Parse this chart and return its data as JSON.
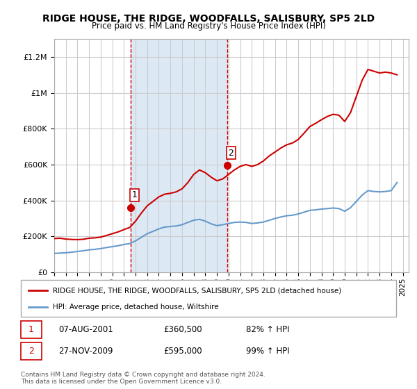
{
  "title": "RIDGE HOUSE, THE RIDGE, WOODFALLS, SALISBURY, SP5 2LD",
  "subtitle": "Price paid vs. HM Land Registry's House Price Index (HPI)",
  "legend_label_red": "RIDGE HOUSE, THE RIDGE, WOODFALLS, SALISBURY, SP5 2LD (detached house)",
  "legend_label_blue": "HPI: Average price, detached house, Wiltshire",
  "sale1_label": "1",
  "sale1_date": "07-AUG-2001",
  "sale1_price": "£360,500",
  "sale1_hpi": "82% ↑ HPI",
  "sale1_year": 2001.6,
  "sale1_value": 360500,
  "sale2_label": "2",
  "sale2_date": "27-NOV-2009",
  "sale2_price": "£595,000",
  "sale2_hpi": "99% ↑ HPI",
  "sale2_year": 2009.9,
  "sale2_value": 595000,
  "footnote": "Contains HM Land Registry data © Crown copyright and database right 2024.\nThis data is licensed under the Open Government Licence v3.0.",
  "background_color": "#ffffff",
  "shading_color": "#dce9f5",
  "red_color": "#cc0000",
  "blue_color": "#6699cc",
  "grid_color": "#cccccc",
  "ylim_min": 0,
  "ylim_max": 1300000,
  "xlim_min": 1995,
  "xlim_max": 2025.5,
  "hpi_years": [
    1995.0,
    1995.5,
    1996.0,
    1996.5,
    1997.0,
    1997.5,
    1998.0,
    1998.5,
    1999.0,
    1999.5,
    2000.0,
    2000.5,
    2001.0,
    2001.5,
    2002.0,
    2002.5,
    2003.0,
    2003.5,
    2004.0,
    2004.5,
    2005.0,
    2005.5,
    2006.0,
    2006.5,
    2007.0,
    2007.5,
    2008.0,
    2008.5,
    2009.0,
    2009.5,
    2010.0,
    2010.5,
    2011.0,
    2011.5,
    2012.0,
    2012.5,
    2013.0,
    2013.5,
    2014.0,
    2014.5,
    2015.0,
    2015.5,
    2016.0,
    2016.5,
    2017.0,
    2017.5,
    2018.0,
    2018.5,
    2019.0,
    2019.5,
    2020.0,
    2020.5,
    2021.0,
    2021.5,
    2022.0,
    2022.5,
    2023.0,
    2023.5,
    2024.0,
    2024.5
  ],
  "hpi_values": [
    105000,
    107000,
    109000,
    112000,
    116000,
    120000,
    125000,
    128000,
    132000,
    138000,
    143000,
    148000,
    155000,
    160000,
    175000,
    195000,
    215000,
    228000,
    242000,
    252000,
    255000,
    258000,
    265000,
    278000,
    290000,
    295000,
    285000,
    270000,
    260000,
    265000,
    272000,
    278000,
    280000,
    278000,
    272000,
    275000,
    280000,
    290000,
    300000,
    308000,
    315000,
    318000,
    325000,
    335000,
    345000,
    348000,
    352000,
    355000,
    358000,
    355000,
    340000,
    360000,
    395000,
    430000,
    455000,
    450000,
    448000,
    450000,
    455000,
    500000
  ],
  "red_years": [
    1995.0,
    1995.5,
    1996.0,
    1996.5,
    1997.0,
    1997.5,
    1998.0,
    1998.5,
    1999.0,
    1999.5,
    2000.0,
    2000.5,
    2001.0,
    2001.5,
    2002.0,
    2002.5,
    2003.0,
    2003.5,
    2004.0,
    2004.5,
    2005.0,
    2005.5,
    2006.0,
    2006.5,
    2007.0,
    2007.5,
    2008.0,
    2008.5,
    2009.0,
    2009.5,
    2010.0,
    2010.5,
    2011.0,
    2011.5,
    2012.0,
    2012.5,
    2013.0,
    2013.5,
    2014.0,
    2014.5,
    2015.0,
    2015.5,
    2016.0,
    2016.5,
    2017.0,
    2017.5,
    2018.0,
    2018.5,
    2019.0,
    2019.5,
    2020.0,
    2020.5,
    2021.0,
    2021.5,
    2022.0,
    2022.5,
    2023.0,
    2023.5,
    2024.0,
    2024.5
  ],
  "red_values": [
    188000,
    190000,
    185000,
    183000,
    182000,
    184000,
    190000,
    192000,
    196000,
    205000,
    215000,
    225000,
    238000,
    250000,
    285000,
    330000,
    370000,
    395000,
    420000,
    435000,
    440000,
    448000,
    465000,
    500000,
    545000,
    570000,
    555000,
    530000,
    510000,
    520000,
    545000,
    570000,
    590000,
    600000,
    590000,
    600000,
    620000,
    648000,
    670000,
    692000,
    710000,
    720000,
    740000,
    775000,
    812000,
    830000,
    850000,
    868000,
    880000,
    875000,
    840000,
    890000,
    980000,
    1070000,
    1130000,
    1120000,
    1110000,
    1115000,
    1110000,
    1100000
  ]
}
